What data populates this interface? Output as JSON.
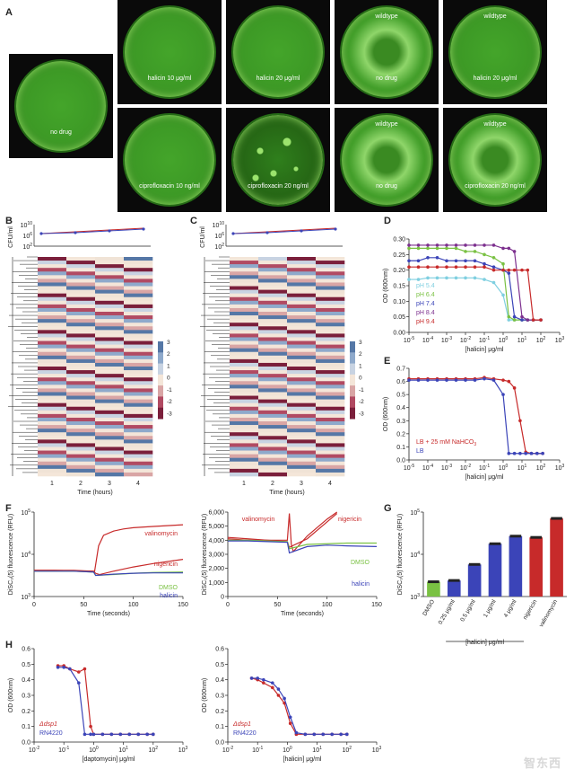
{
  "panel_labels": {
    "A": "A",
    "B": "B",
    "C": "C",
    "D": "D",
    "E": "E",
    "F": "F",
    "G": "G",
    "H": "H"
  },
  "plates": [
    {
      "id": "p0",
      "top_label": "",
      "bottom_label": "no drug",
      "spots": false,
      "pattern": "lawn"
    },
    {
      "id": "p1",
      "top_label": "",
      "bottom_label": "halicin 10 μg/ml",
      "spots": false,
      "pattern": "lawn"
    },
    {
      "id": "p2",
      "top_label": "",
      "bottom_label": "halicin 20 μg/ml",
      "spots": false,
      "pattern": "lawn"
    },
    {
      "id": "p3",
      "top_label": "wildtype",
      "bottom_label": "no drug",
      "spots": false,
      "pattern": "swarm"
    },
    {
      "id": "p4",
      "top_label": "wildtype",
      "bottom_label": "halicin 20 μg/ml",
      "spots": false,
      "pattern": "lawn"
    },
    {
      "id": "p5",
      "top_label": "",
      "bottom_label": "ciprofloxacin 10 ng/ml",
      "spots": false,
      "pattern": "lawn"
    },
    {
      "id": "p6",
      "top_label": "",
      "bottom_label": "ciprofloxacin 20 ng/ml",
      "spots": true,
      "pattern": "spots"
    },
    {
      "id": "p7",
      "top_label": "wildtype",
      "bottom_label": "no drug",
      "spots": false,
      "pattern": "swarm"
    },
    {
      "id": "p8",
      "top_label": "wildtype",
      "bottom_label": "ciprofloxacin 20 ng/ml",
      "spots": false,
      "pattern": "swarm"
    }
  ],
  "heatmap": {
    "cfu_ylabel": "CFU/ml",
    "cfu_ticks": [
      "10",
      "10",
      "10"
    ],
    "cfu_tick_exps": [
      "10",
      "6",
      "2"
    ],
    "x_ticks": [
      "1",
      "2",
      "3",
      "4"
    ],
    "xlabel": "Time (hours)",
    "colorbar_ticks": [
      "3",
      "2",
      "1",
      "0",
      "-1",
      "-2",
      "-3"
    ]
  },
  "chart_data": [
    {
      "id": "D",
      "type": "line",
      "xlabel": "[halicin] μg/ml",
      "ylabel": "OD (600nm)",
      "xscale": "log",
      "xlim_exp": [
        -5,
        3
      ],
      "ylim": [
        0.0,
        0.3
      ],
      "yticks": [
        "0.00",
        "0.05",
        "0.10",
        "0.15",
        "0.20",
        "0.25",
        "0.30"
      ],
      "xtick_exps": [
        "-5",
        "-4",
        "-3",
        "-2",
        "-1",
        "0",
        "1",
        "2",
        "3"
      ],
      "legend": "bottom-left",
      "series": [
        {
          "name": "pH 5.4",
          "color": "#7fcfe0",
          "x": [
            -5,
            -4.5,
            -4,
            -3.5,
            -3,
            -2.5,
            -2,
            -1.5,
            -1,
            -0.5,
            0,
            0.3,
            0.6,
            1,
            1.3,
            1.6,
            2
          ],
          "y": [
            0.17,
            0.17,
            0.175,
            0.175,
            0.175,
            0.175,
            0.175,
            0.175,
            0.17,
            0.16,
            0.12,
            0.04,
            0.04,
            0.04,
            0.04,
            0.04,
            0.04
          ]
        },
        {
          "name": "pH 6.4",
          "color": "#7ac143",
          "x": [
            -5,
            -4.5,
            -4,
            -3.5,
            -3,
            -2.5,
            -2,
            -1.5,
            -1,
            -0.5,
            0,
            0.3,
            0.6,
            1,
            1.3,
            1.6,
            2
          ],
          "y": [
            0.27,
            0.27,
            0.27,
            0.27,
            0.27,
            0.27,
            0.26,
            0.26,
            0.25,
            0.24,
            0.22,
            0.05,
            0.04,
            0.04,
            0.04,
            0.04,
            0.04
          ]
        },
        {
          "name": "pH 7.4",
          "color": "#3b44b8",
          "x": [
            -5,
            -4.5,
            -4,
            -3.5,
            -3,
            -2.5,
            -2,
            -1.5,
            -1,
            -0.5,
            0,
            0.3,
            0.6,
            1,
            1.3,
            1.6,
            2
          ],
          "y": [
            0.23,
            0.23,
            0.24,
            0.24,
            0.23,
            0.23,
            0.23,
            0.23,
            0.22,
            0.21,
            0.2,
            0.19,
            0.05,
            0.04,
            0.04,
            0.04,
            0.04
          ]
        },
        {
          "name": "pH 8.4",
          "color": "#7c2f8e",
          "x": [
            -5,
            -4.5,
            -4,
            -3.5,
            -3,
            -2.5,
            -2,
            -1.5,
            -1,
            -0.5,
            0,
            0.3,
            0.6,
            1,
            1.3,
            1.6,
            2
          ],
          "y": [
            0.28,
            0.28,
            0.28,
            0.28,
            0.28,
            0.28,
            0.28,
            0.28,
            0.28,
            0.28,
            0.27,
            0.27,
            0.26,
            0.05,
            0.04,
            0.04,
            0.04
          ]
        },
        {
          "name": "pH 9.4",
          "color": "#c72a2a",
          "x": [
            -5,
            -4.5,
            -4,
            -3.5,
            -3,
            -2.5,
            -2,
            -1.5,
            -1,
            -0.5,
            0,
            0.3,
            0.6,
            1,
            1.3,
            1.6,
            2
          ],
          "y": [
            0.21,
            0.21,
            0.21,
            0.21,
            0.21,
            0.21,
            0.21,
            0.21,
            0.21,
            0.2,
            0.2,
            0.2,
            0.2,
            0.2,
            0.2,
            0.04,
            0.04
          ]
        }
      ]
    },
    {
      "id": "E",
      "type": "line",
      "xlabel": "[halicin] μg/ml",
      "ylabel": "OD (600nm)",
      "xscale": "log",
      "xlim_exp": [
        -5,
        3
      ],
      "ylim": [
        0.0,
        0.7
      ],
      "yticks": [
        "0.0",
        "0.1",
        "0.2",
        "0.3",
        "0.4",
        "0.5",
        "0.6",
        "0.7"
      ],
      "xtick_exps": [
        "-5",
        "-4",
        "-3",
        "-2",
        "-1",
        "0",
        "1",
        "2",
        "3"
      ],
      "legend": "bottom-left",
      "series": [
        {
          "name": "LB + 25 mM NaHCO",
          "name_sub": "3",
          "color": "#c72a2a",
          "x": [
            -5,
            -4.5,
            -4,
            -3.5,
            -3,
            -2.5,
            -2,
            -1.5,
            -1,
            -0.5,
            0,
            0.3,
            0.6,
            0.9,
            1.2,
            1.5,
            1.8,
            2.1
          ],
          "y": [
            0.62,
            0.62,
            0.62,
            0.62,
            0.62,
            0.62,
            0.62,
            0.62,
            0.63,
            0.62,
            0.61,
            0.6,
            0.55,
            0.3,
            0.06,
            0.05,
            0.05,
            0.05
          ]
        },
        {
          "name": "LB",
          "name_sub": "",
          "color": "#3b44b8",
          "x": [
            -5,
            -4.5,
            -4,
            -3.5,
            -3,
            -2.5,
            -2,
            -1.5,
            -1,
            -0.5,
            0,
            0.3,
            0.6,
            0.9,
            1.2,
            1.5,
            1.8,
            2.1
          ],
          "y": [
            0.61,
            0.61,
            0.61,
            0.61,
            0.61,
            0.61,
            0.61,
            0.61,
            0.62,
            0.61,
            0.5,
            0.05,
            0.05,
            0.05,
            0.05,
            0.05,
            0.05,
            0.05
          ]
        }
      ]
    },
    {
      "id": "F1",
      "type": "line",
      "xlabel": "Time (seconds)",
      "ylabel": "DiSC₃(5) fluorescence (RFU)",
      "xlim": [
        0,
        150
      ],
      "yscale": "log",
      "ylim_exp": [
        3,
        5
      ],
      "xticks": [
        "0",
        "50",
        "100",
        "150"
      ],
      "series": [
        {
          "name": "valinomycin",
          "color": "#c72a2a",
          "x": [
            0,
            20,
            40,
            60,
            61,
            65,
            70,
            80,
            90,
            100,
            120,
            150
          ],
          "y": [
            3.62,
            3.62,
            3.62,
            3.6,
            3.6,
            4.2,
            4.45,
            4.55,
            4.6,
            4.63,
            4.66,
            4.7
          ]
        },
        {
          "name": "nigericin",
          "color": "#c72a2a",
          "x": [
            0,
            20,
            40,
            60,
            62,
            66,
            80,
            100,
            120,
            150
          ],
          "y": [
            3.62,
            3.62,
            3.61,
            3.6,
            3.55,
            3.52,
            3.6,
            3.7,
            3.78,
            3.88
          ]
        },
        {
          "name": "DMSO",
          "color": "#7ac143",
          "x": [
            0,
            20,
            40,
            60,
            62,
            80,
            100,
            120,
            150
          ],
          "y": [
            3.6,
            3.6,
            3.6,
            3.58,
            3.5,
            3.52,
            3.55,
            3.57,
            3.58
          ]
        },
        {
          "name": "halicin",
          "color": "#3b44b8",
          "x": [
            0,
            20,
            40,
            60,
            62,
            80,
            100,
            120,
            150
          ],
          "y": [
            3.6,
            3.6,
            3.6,
            3.58,
            3.5,
            3.53,
            3.55,
            3.56,
            3.56
          ]
        }
      ]
    },
    {
      "id": "F2",
      "type": "line",
      "xlabel": "Time (seconds)",
      "ylabel": "DiSC₃(5) fluorescence (RFU)",
      "xlim": [
        0,
        150
      ],
      "ylim": [
        0,
        6000
      ],
      "yticks": [
        "0",
        "1,000",
        "2,000",
        "3,000",
        "4,000",
        "5,000",
        "6,000"
      ],
      "xticks": [
        "0",
        "50",
        "100",
        "150"
      ],
      "series": [
        {
          "name": "valinomycin",
          "color": "#c72a2a",
          "x": [
            0,
            20,
            40,
            60,
            62,
            64,
            66,
            80,
            100,
            110
          ],
          "y": [
            4100,
            4000,
            4000,
            4000,
            5900,
            3700,
            3200,
            4300,
            5500,
            6000
          ]
        },
        {
          "name": "nigericin",
          "color": "#c72a2a",
          "x": [
            0,
            20,
            40,
            60,
            62,
            80,
            100,
            110
          ],
          "y": [
            4200,
            4100,
            4000,
            3900,
            3500,
            4100,
            5300,
            5900
          ]
        },
        {
          "name": "DMSO",
          "color": "#7ac143",
          "x": [
            0,
            20,
            40,
            60,
            62,
            80,
            100,
            120,
            150
          ],
          "y": [
            4000,
            4000,
            3950,
            3900,
            3400,
            3700,
            3750,
            3800,
            3800
          ]
        },
        {
          "name": "halicin",
          "color": "#3b44b8",
          "x": [
            0,
            20,
            40,
            60,
            62,
            80,
            100,
            120,
            150
          ],
          "y": [
            3950,
            3950,
            3900,
            3850,
            3100,
            3550,
            3650,
            3600,
            3550
          ]
        }
      ]
    },
    {
      "id": "G",
      "type": "bar",
      "ylabel": "DiSC₃(5) fluorescence (RFU)",
      "yscale": "log",
      "ylim_exp": [
        3,
        5
      ],
      "categories": [
        "DMSO",
        "0.25 μg/ml",
        "0.5 μg/ml",
        "1 μg/ml",
        "4 μg/ml",
        "nigericin",
        "valinomycin"
      ],
      "values_log10": [
        3.35,
        3.38,
        3.76,
        4.25,
        4.43,
        4.4,
        4.85
      ],
      "colors": [
        "#7ac143",
        "#3b44b8",
        "#3b44b8",
        "#3b44b8",
        "#3b44b8",
        "#c72a2a",
        "#c72a2a"
      ],
      "group_label": "[halicin] μg/ml"
    },
    {
      "id": "H1",
      "type": "line",
      "xlabel": "[daptomycin] μg/ml",
      "ylabel": "OD (600nm)",
      "xscale": "log",
      "xlim_exp": [
        -2,
        3
      ],
      "ylim": [
        0.0,
        0.6
      ],
      "yticks": [
        "0.0",
        "0.1",
        "0.2",
        "0.3",
        "0.4",
        "0.5",
        "0.6"
      ],
      "xtick_exps": [
        "-2",
        "-1",
        "0",
        "1",
        "2",
        "3"
      ],
      "legend": "bottom-left",
      "series": [
        {
          "name": "Δdsp1",
          "color": "#c72a2a",
          "x": [
            -1.2,
            -1,
            -0.8,
            -0.5,
            -0.3,
            -0.1,
            0,
            0.3,
            0.6,
            0.9,
            1.2,
            1.5,
            1.8,
            2
          ],
          "y": [
            0.49,
            0.49,
            0.47,
            0.45,
            0.47,
            0.1,
            0.05,
            0.05,
            0.05,
            0.05,
            0.05,
            0.05,
            0.05,
            0.05
          ]
        },
        {
          "name": "RN4220",
          "color": "#3b44b8",
          "x": [
            -1.2,
            -1,
            -0.8,
            -0.5,
            -0.3,
            -0.1,
            0,
            0.3,
            0.6,
            0.9,
            1.2,
            1.5,
            1.8,
            2
          ],
          "y": [
            0.48,
            0.48,
            0.47,
            0.38,
            0.05,
            0.05,
            0.05,
            0.05,
            0.05,
            0.05,
            0.05,
            0.05,
            0.05,
            0.05
          ]
        }
      ]
    },
    {
      "id": "H2",
      "type": "line",
      "xlabel": "[halicin] μg/ml",
      "ylabel": "OD (600nm)",
      "xscale": "log",
      "xlim_exp": [
        -2,
        3
      ],
      "ylim": [
        0.0,
        0.6
      ],
      "yticks": [
        "0.0",
        "0.1",
        "0.2",
        "0.3",
        "0.4",
        "0.5",
        "0.6"
      ],
      "xtick_exps": [
        "-2",
        "-1",
        "0",
        "1",
        "2",
        "3"
      ],
      "legend": "bottom-left",
      "series": [
        {
          "name": "Δdsp1",
          "color": "#c72a2a",
          "x": [
            -1.2,
            -1,
            -0.8,
            -0.5,
            -0.3,
            -0.1,
            0.1,
            0.3,
            0.6,
            0.9,
            1.2,
            1.5,
            1.8,
            2
          ],
          "y": [
            0.41,
            0.4,
            0.38,
            0.35,
            0.3,
            0.25,
            0.12,
            0.05,
            0.05,
            0.05,
            0.05,
            0.05,
            0.05,
            0.05
          ]
        },
        {
          "name": "RN4220",
          "color": "#3b44b8",
          "x": [
            -1.2,
            -1,
            -0.8,
            -0.5,
            -0.3,
            -0.1,
            0.1,
            0.3,
            0.6,
            0.9,
            1.2,
            1.5,
            1.8,
            2
          ],
          "y": [
            0.41,
            0.41,
            0.4,
            0.38,
            0.34,
            0.28,
            0.16,
            0.06,
            0.05,
            0.05,
            0.05,
            0.05,
            0.05,
            0.05
          ]
        }
      ]
    }
  ],
  "watermark": "智东西"
}
